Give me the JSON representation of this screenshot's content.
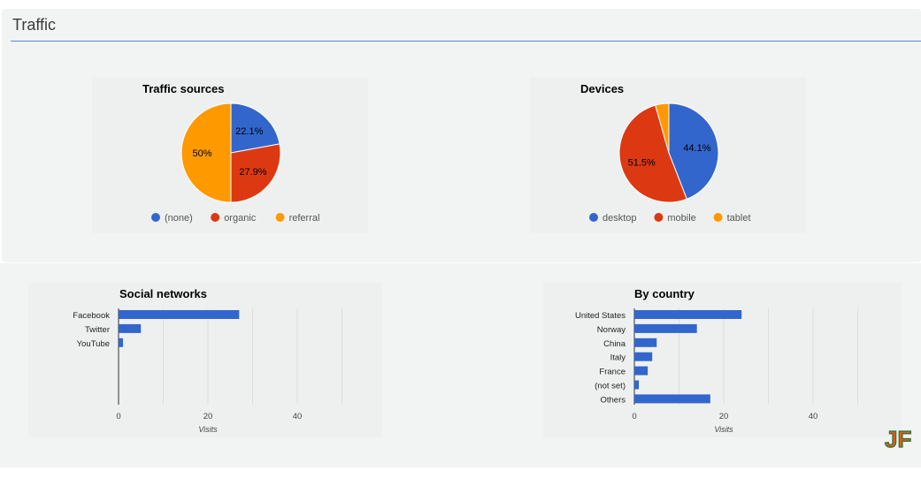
{
  "section": {
    "title": "Traffic"
  },
  "colors": {
    "blue": "#3366cc",
    "red": "#dc3912",
    "orange": "#ff9900"
  },
  "logo": {
    "text": "JF"
  },
  "chart_data": [
    {
      "id": "traffic-sources",
      "type": "pie",
      "title": "Traffic sources",
      "slices": [
        {
          "label": "(none)",
          "value": 22.1,
          "display": "22.1%",
          "color": "#3366cc"
        },
        {
          "label": "organic",
          "value": 27.9,
          "display": "27.9%",
          "color": "#dc3912"
        },
        {
          "label": "referral",
          "value": 50,
          "display": "50%",
          "color": "#ff9900"
        }
      ],
      "legend": "bottom"
    },
    {
      "id": "devices",
      "type": "pie",
      "title": "Devices",
      "slices": [
        {
          "label": "desktop",
          "value": 44.1,
          "display": "44.1%",
          "color": "#3366cc"
        },
        {
          "label": "mobile",
          "value": 51.5,
          "display": "51.5%",
          "color": "#dc3912"
        },
        {
          "label": "tablet",
          "value": 4.4,
          "display": "",
          "color": "#ff9900"
        }
      ],
      "legend": "bottom"
    },
    {
      "id": "social-networks",
      "type": "bar",
      "orientation": "horizontal",
      "title": "Social networks",
      "categories": [
        "Facebook",
        "Twitter",
        "YouTube"
      ],
      "values": [
        27,
        5,
        1
      ],
      "xlabel": "Visits",
      "xlim": [
        0,
        40
      ],
      "xticks": [
        0,
        20,
        40
      ],
      "grid": true,
      "color": "#3366cc"
    },
    {
      "id": "by-country",
      "type": "bar",
      "orientation": "horizontal",
      "title": "By country",
      "categories": [
        "United States",
        "Norway",
        "China",
        "Italy",
        "France",
        "(not set)",
        "Others"
      ],
      "values": [
        24,
        14,
        5,
        4,
        3,
        1,
        17
      ],
      "xlabel": "Visits",
      "xlim": [
        0,
        40
      ],
      "xticks": [
        0,
        20,
        40
      ],
      "grid": true,
      "color": "#3366cc"
    }
  ]
}
